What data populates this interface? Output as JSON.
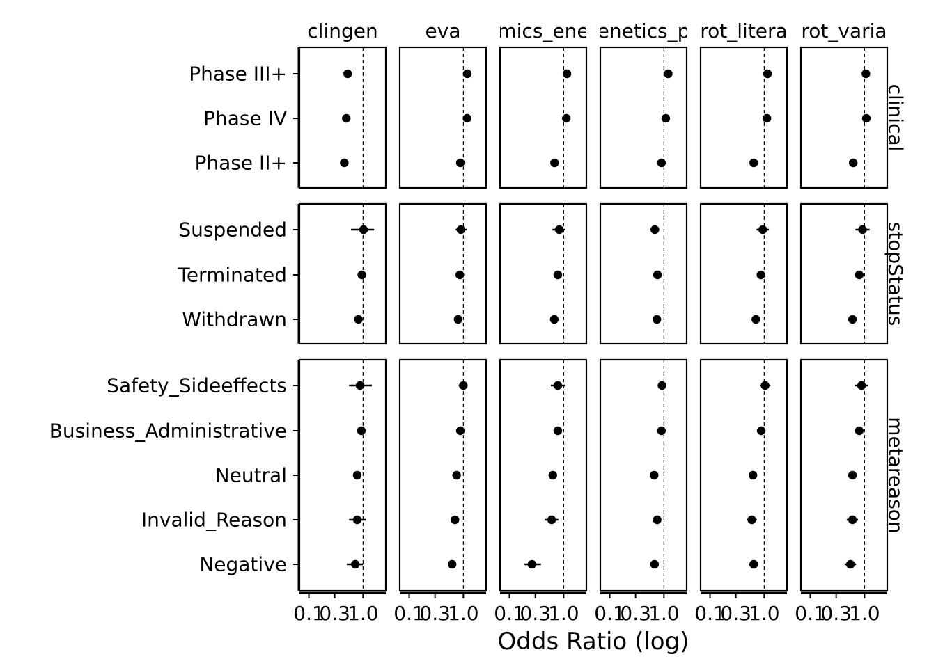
{
  "chart_data": {
    "type": "scatter",
    "xlabel": "Odds Ratio (log)",
    "x_scale": "log",
    "xlim": [
      0.09,
      2.2
    ],
    "x_ticks": [
      {
        "value": 0.1,
        "label": "0.1"
      },
      {
        "value": 0.3,
        "label": "0.3"
      },
      {
        "value": 1.0,
        "label": "1.0"
      }
    ],
    "reference_line": 1.0,
    "grid": false,
    "columns": [
      "clingen",
      "eva",
      "genomics_england",
      "genetics_portal",
      "uniprot_literature",
      "uniprot_variants"
    ],
    "column_labels": [
      "clingen",
      "eva",
      "mics_ene",
      "enetics_p",
      "rot_litera",
      "rot_varia"
    ],
    "x_tick_label_row": [
      "0.1",
      "0.3",
      "1.0",
      "0.1",
      "0.3",
      "1.0",
      "0.1",
      "0.3",
      "1.0",
      "0.1",
      "0.3",
      "1.0",
      "0.1",
      "0.3",
      "1.0",
      "0.1",
      "0.3",
      "1.0"
    ],
    "rows": [
      {
        "label": "clinical",
        "categories": [
          "Phase III+",
          "Phase IV",
          "Phase II+"
        ]
      },
      {
        "label": "stopStatus",
        "categories": [
          "Suspended",
          "Terminated",
          "Withdrawn"
        ]
      },
      {
        "label": "metareason",
        "categories": [
          "Safety_Sideeffects",
          "Business_Administrative",
          "Neutral",
          "Invalid_Reason",
          "Negative"
        ]
      }
    ],
    "series": [
      {
        "panel_column": "clingen",
        "points": [
          {
            "category": "Phase III+",
            "or": 0.52
          },
          {
            "category": "Phase IV",
            "or": 0.49
          },
          {
            "category": "Phase II+",
            "or": 0.45
          },
          {
            "category": "Suspended",
            "or": 1.02,
            "lo": 0.6,
            "hi": 1.6
          },
          {
            "category": "Terminated",
            "or": 0.95,
            "lo": 0.89,
            "hi": 1.01
          },
          {
            "category": "Withdrawn",
            "or": 0.82,
            "lo": 0.68,
            "hi": 0.98
          },
          {
            "category": "Safety_Sideeffects",
            "or": 0.88,
            "lo": 0.55,
            "hi": 1.45
          },
          {
            "category": "Business_Administrative",
            "or": 0.93,
            "lo": 0.82,
            "hi": 1.1
          },
          {
            "category": "Neutral",
            "or": 0.78,
            "lo": 0.7,
            "hi": 0.86
          },
          {
            "category": "Invalid_Reason",
            "or": 0.78,
            "lo": 0.55,
            "hi": 1.12
          },
          {
            "category": "Negative",
            "or": 0.72,
            "lo": 0.5,
            "hi": 1.0
          }
        ]
      },
      {
        "panel_column": "eva",
        "points": [
          {
            "category": "Phase III+",
            "or": 1.18
          },
          {
            "category": "Phase IV",
            "or": 1.17
          },
          {
            "category": "Phase II+",
            "or": 0.88
          },
          {
            "category": "Suspended",
            "or": 0.9,
            "lo": 0.72,
            "hi": 1.15
          },
          {
            "category": "Terminated",
            "or": 0.86,
            "lo": 0.82,
            "hi": 0.9
          },
          {
            "category": "Withdrawn",
            "or": 0.8,
            "lo": 0.74,
            "hi": 0.87
          },
          {
            "category": "Safety_Sideeffects",
            "or": 1.0,
            "lo": 0.82,
            "hi": 1.2
          },
          {
            "category": "Business_Administrative",
            "or": 0.88,
            "lo": 0.82,
            "hi": 0.94
          },
          {
            "category": "Neutral",
            "or": 0.75,
            "lo": 0.7,
            "hi": 0.8
          },
          {
            "category": "Invalid_Reason",
            "or": 0.7,
            "lo": 0.6,
            "hi": 0.82
          },
          {
            "category": "Negative",
            "or": 0.62,
            "lo": 0.53,
            "hi": 0.72
          }
        ]
      },
      {
        "panel_column": "genomics_england",
        "points": [
          {
            "category": "Phase III+",
            "or": 1.15
          },
          {
            "category": "Phase IV",
            "or": 1.12
          },
          {
            "category": "Phase II+",
            "or": 0.68
          },
          {
            "category": "Suspended",
            "or": 0.83,
            "lo": 0.62,
            "hi": 1.07
          },
          {
            "category": "Terminated",
            "or": 0.78,
            "lo": 0.73,
            "hi": 0.84
          },
          {
            "category": "Withdrawn",
            "or": 0.67,
            "lo": 0.61,
            "hi": 0.75
          },
          {
            "category": "Safety_Sideeffects",
            "or": 0.78,
            "lo": 0.58,
            "hi": 1.06
          },
          {
            "category": "Business_Administrative",
            "or": 0.78,
            "lo": 0.7,
            "hi": 0.87
          },
          {
            "category": "Neutral",
            "or": 0.63,
            "lo": 0.59,
            "hi": 0.68
          },
          {
            "category": "Invalid_Reason",
            "or": 0.6,
            "lo": 0.45,
            "hi": 0.8
          },
          {
            "category": "Negative",
            "or": 0.26,
            "lo": 0.19,
            "hi": 0.38
          }
        ]
      },
      {
        "panel_column": "genetics_portal",
        "points": [
          {
            "category": "Phase III+",
            "or": 1.2
          },
          {
            "category": "Phase IV",
            "or": 1.08
          },
          {
            "category": "Phase II+",
            "or": 0.9
          },
          {
            "category": "Suspended",
            "or": 0.68,
            "lo": 0.56,
            "hi": 0.82
          },
          {
            "category": "Terminated",
            "or": 0.76,
            "lo": 0.72,
            "hi": 0.8
          },
          {
            "category": "Withdrawn",
            "or": 0.74,
            "lo": 0.68,
            "hi": 0.8
          },
          {
            "category": "Safety_Sideeffects",
            "or": 0.92,
            "lo": 0.79,
            "hi": 1.06
          },
          {
            "category": "Business_Administrative",
            "or": 0.9,
            "lo": 0.84,
            "hi": 0.96
          },
          {
            "category": "Neutral",
            "or": 0.66,
            "lo": 0.62,
            "hi": 0.7
          },
          {
            "category": "Invalid_Reason",
            "or": 0.75,
            "lo": 0.67,
            "hi": 0.84
          },
          {
            "category": "Negative",
            "or": 0.67,
            "lo": 0.6,
            "hi": 0.76
          }
        ]
      },
      {
        "panel_column": "uniprot_literature",
        "points": [
          {
            "category": "Phase III+",
            "or": 1.15
          },
          {
            "category": "Phase IV",
            "or": 1.12
          },
          {
            "category": "Phase II+",
            "or": 0.64
          },
          {
            "category": "Suspended",
            "or": 0.94,
            "lo": 0.72,
            "hi": 1.22
          },
          {
            "category": "Terminated",
            "or": 0.87,
            "lo": 0.8,
            "hi": 0.95
          },
          {
            "category": "Withdrawn",
            "or": 0.7,
            "lo": 0.64,
            "hi": 0.77
          },
          {
            "category": "Safety_Sideeffects",
            "or": 1.04,
            "lo": 0.83,
            "hi": 1.3
          },
          {
            "category": "Business_Administrative",
            "or": 0.88,
            "lo": 0.82,
            "hi": 0.95
          },
          {
            "category": "Neutral",
            "or": 0.62,
            "lo": 0.58,
            "hi": 0.66
          },
          {
            "category": "Invalid_Reason",
            "or": 0.59,
            "lo": 0.48,
            "hi": 0.73
          },
          {
            "category": "Negative",
            "or": 0.64,
            "lo": 0.53,
            "hi": 0.78
          }
        ]
      },
      {
        "panel_column": "uniprot_variants",
        "points": [
          {
            "category": "Phase III+",
            "or": 1.06
          },
          {
            "category": "Phase IV",
            "or": 1.08
          },
          {
            "category": "Phase II+",
            "or": 0.62
          },
          {
            "category": "Suspended",
            "or": 0.92,
            "lo": 0.68,
            "hi": 1.24
          },
          {
            "category": "Terminated",
            "or": 0.8,
            "lo": 0.74,
            "hi": 0.86
          },
          {
            "category": "Withdrawn",
            "or": 0.6,
            "lo": 0.53,
            "hi": 0.68
          },
          {
            "category": "Safety_Sideeffects",
            "or": 0.88,
            "lo": 0.66,
            "hi": 1.16
          },
          {
            "category": "Business_Administrative",
            "or": 0.8,
            "lo": 0.71,
            "hi": 0.9
          },
          {
            "category": "Neutral",
            "or": 0.6,
            "lo": 0.56,
            "hi": 0.64
          },
          {
            "category": "Invalid_Reason",
            "or": 0.6,
            "lo": 0.47,
            "hi": 0.76
          },
          {
            "category": "Negative",
            "or": 0.55,
            "lo": 0.43,
            "hi": 0.7
          }
        ]
      }
    ]
  }
}
